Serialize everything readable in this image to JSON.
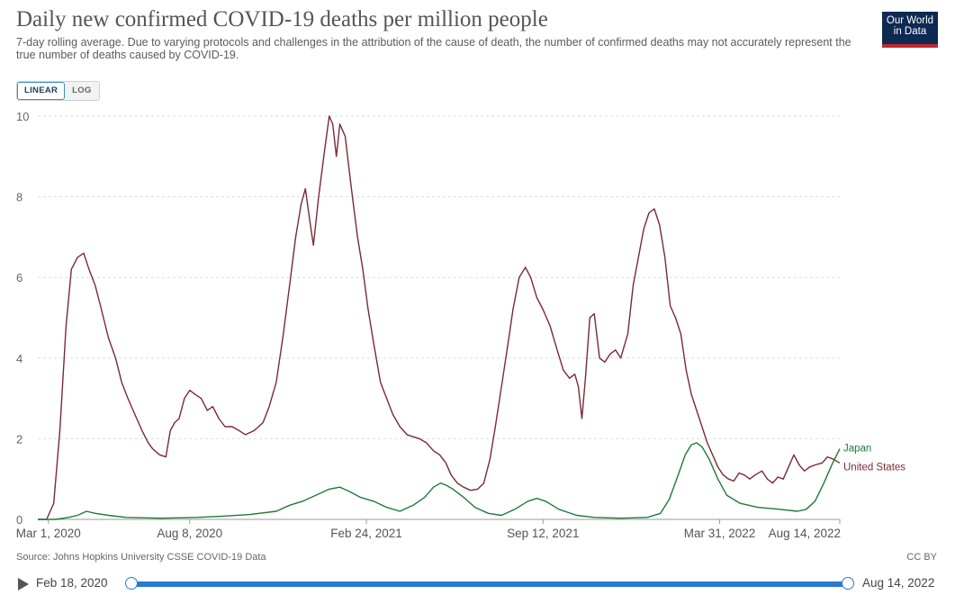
{
  "header": {
    "title": "Daily new confirmed COVID-19 deaths per million people",
    "subtitle": "7-day rolling average. Due to varying protocols and challenges in the attribution of the cause of death, the number of confirmed deaths may not accurately represent the true number of deaths caused by COVID-19.",
    "logo_line1": "Our World",
    "logo_line2": "in Data"
  },
  "controls": {
    "linear_label": "LINEAR",
    "log_label": "LOG",
    "active": "linear"
  },
  "footer": {
    "source": "Source: Johns Hopkins University CSSE COVID-19 Data",
    "license": "CC BY"
  },
  "timeline": {
    "start_label": "Feb 18, 2020",
    "end_label": "Aug 14, 2022"
  },
  "colors": {
    "united_states": "#7a2a35",
    "japan": "#1f7a3a",
    "grid": "#dddddd",
    "axis": "#999999"
  },
  "chart_data": {
    "type": "line",
    "title": "Daily new confirmed COVID-19 deaths per million people",
    "xlabel": "",
    "ylabel": "",
    "ylim": [
      0,
      10
    ],
    "y_ticks": [
      0,
      2,
      4,
      6,
      8,
      10
    ],
    "x_tick_labels": [
      {
        "day": 12,
        "label": "Mar 1, 2020"
      },
      {
        "day": 172,
        "label": "Aug 8, 2020"
      },
      {
        "day": 372,
        "label": "Feb 24, 2021"
      },
      {
        "day": 572,
        "label": "Sep 12, 2021"
      },
      {
        "day": 772,
        "label": "Mar 31, 2022"
      },
      {
        "day": 908,
        "label": "Aug 14, 2022"
      }
    ],
    "x_range": [
      0,
      908
    ],
    "grid": true,
    "series": [
      {
        "name": "United States",
        "label": "United States",
        "points": [
          [
            0,
            0
          ],
          [
            10,
            0
          ],
          [
            18,
            0.4
          ],
          [
            25,
            2.2
          ],
          [
            32,
            4.8
          ],
          [
            38,
            6.2
          ],
          [
            45,
            6.5
          ],
          [
            52,
            6.6
          ],
          [
            58,
            6.2
          ],
          [
            65,
            5.8
          ],
          [
            72,
            5.2
          ],
          [
            80,
            4.5
          ],
          [
            88,
            4.0
          ],
          [
            95,
            3.4
          ],
          [
            102,
            3.0
          ],
          [
            110,
            2.6
          ],
          [
            118,
            2.2
          ],
          [
            125,
            1.9
          ],
          [
            130,
            1.75
          ],
          [
            138,
            1.6
          ],
          [
            145,
            1.55
          ],
          [
            150,
            2.2
          ],
          [
            155,
            2.4
          ],
          [
            160,
            2.5
          ],
          [
            166,
            3.0
          ],
          [
            172,
            3.2
          ],
          [
            178,
            3.1
          ],
          [
            185,
            3.0
          ],
          [
            192,
            2.7
          ],
          [
            198,
            2.8
          ],
          [
            205,
            2.5
          ],
          [
            212,
            2.3
          ],
          [
            220,
            2.3
          ],
          [
            228,
            2.2
          ],
          [
            235,
            2.1
          ],
          [
            245,
            2.2
          ],
          [
            255,
            2.4
          ],
          [
            262,
            2.8
          ],
          [
            270,
            3.4
          ],
          [
            278,
            4.6
          ],
          [
            285,
            5.8
          ],
          [
            292,
            7.0
          ],
          [
            298,
            7.8
          ],
          [
            303,
            8.2
          ],
          [
            308,
            7.4
          ],
          [
            312,
            6.8
          ],
          [
            318,
            8.0
          ],
          [
            325,
            9.2
          ],
          [
            330,
            10.0
          ],
          [
            334,
            9.8
          ],
          [
            338,
            9.0
          ],
          [
            342,
            9.8
          ],
          [
            348,
            9.5
          ],
          [
            355,
            8.2
          ],
          [
            362,
            7.0
          ],
          [
            368,
            6.2
          ],
          [
            374,
            5.2
          ],
          [
            380,
            4.4
          ],
          [
            388,
            3.4
          ],
          [
            395,
            3.0
          ],
          [
            402,
            2.6
          ],
          [
            410,
            2.3
          ],
          [
            418,
            2.1
          ],
          [
            425,
            2.05
          ],
          [
            432,
            2.0
          ],
          [
            440,
            1.9
          ],
          [
            448,
            1.7
          ],
          [
            455,
            1.6
          ],
          [
            462,
            1.4
          ],
          [
            468,
            1.1
          ],
          [
            475,
            0.9
          ],
          [
            482,
            0.8
          ],
          [
            490,
            0.72
          ],
          [
            498,
            0.75
          ],
          [
            505,
            0.9
          ],
          [
            512,
            1.5
          ],
          [
            518,
            2.3
          ],
          [
            525,
            3.3
          ],
          [
            532,
            4.3
          ],
          [
            538,
            5.2
          ],
          [
            545,
            6.0
          ],
          [
            552,
            6.25
          ],
          [
            558,
            6.0
          ],
          [
            565,
            5.5
          ],
          [
            572,
            5.2
          ],
          [
            580,
            4.8
          ],
          [
            588,
            4.2
          ],
          [
            595,
            3.7
          ],
          [
            602,
            3.5
          ],
          [
            608,
            3.6
          ],
          [
            612,
            3.3
          ],
          [
            616,
            2.5
          ],
          [
            620,
            3.5
          ],
          [
            625,
            5.0
          ],
          [
            630,
            5.1
          ],
          [
            636,
            4.0
          ],
          [
            642,
            3.9
          ],
          [
            648,
            4.1
          ],
          [
            654,
            4.2
          ],
          [
            660,
            4.0
          ],
          [
            668,
            4.6
          ],
          [
            674,
            5.8
          ],
          [
            680,
            6.5
          ],
          [
            686,
            7.2
          ],
          [
            692,
            7.6
          ],
          [
            698,
            7.7
          ],
          [
            704,
            7.3
          ],
          [
            710,
            6.5
          ],
          [
            716,
            5.3
          ],
          [
            722,
            5.0
          ],
          [
            728,
            4.6
          ],
          [
            734,
            3.7
          ],
          [
            740,
            3.1
          ],
          [
            746,
            2.7
          ],
          [
            752,
            2.3
          ],
          [
            758,
            1.9
          ],
          [
            764,
            1.6
          ],
          [
            770,
            1.3
          ],
          [
            776,
            1.1
          ],
          [
            782,
            1.0
          ],
          [
            788,
            0.95
          ],
          [
            794,
            1.15
          ],
          [
            800,
            1.1
          ],
          [
            806,
            1.0
          ],
          [
            812,
            1.1
          ],
          [
            820,
            1.2
          ],
          [
            826,
            1.0
          ],
          [
            832,
            0.9
          ],
          [
            838,
            1.05
          ],
          [
            844,
            1.0
          ],
          [
            850,
            1.3
          ],
          [
            856,
            1.6
          ],
          [
            862,
            1.35
          ],
          [
            868,
            1.2
          ],
          [
            874,
            1.3
          ],
          [
            880,
            1.35
          ],
          [
            888,
            1.4
          ],
          [
            894,
            1.55
          ],
          [
            900,
            1.5
          ],
          [
            908,
            1.4
          ]
        ]
      },
      {
        "name": "Japan",
        "label": "Japan",
        "points": [
          [
            0,
            0
          ],
          [
            20,
            0
          ],
          [
            35,
            0.05
          ],
          [
            45,
            0.1
          ],
          [
            55,
            0.2
          ],
          [
            65,
            0.15
          ],
          [
            80,
            0.1
          ],
          [
            100,
            0.05
          ],
          [
            140,
            0.03
          ],
          [
            180,
            0.05
          ],
          [
            210,
            0.08
          ],
          [
            240,
            0.12
          ],
          [
            270,
            0.2
          ],
          [
            285,
            0.35
          ],
          [
            300,
            0.45
          ],
          [
            315,
            0.6
          ],
          [
            330,
            0.75
          ],
          [
            342,
            0.8
          ],
          [
            352,
            0.7
          ],
          [
            365,
            0.55
          ],
          [
            380,
            0.45
          ],
          [
            395,
            0.3
          ],
          [
            410,
            0.2
          ],
          [
            425,
            0.35
          ],
          [
            438,
            0.55
          ],
          [
            448,
            0.8
          ],
          [
            456,
            0.9
          ],
          [
            462,
            0.85
          ],
          [
            470,
            0.75
          ],
          [
            482,
            0.55
          ],
          [
            495,
            0.3
          ],
          [
            510,
            0.15
          ],
          [
            525,
            0.1
          ],
          [
            540,
            0.25
          ],
          [
            555,
            0.45
          ],
          [
            565,
            0.52
          ],
          [
            575,
            0.45
          ],
          [
            590,
            0.25
          ],
          [
            610,
            0.1
          ],
          [
            630,
            0.05
          ],
          [
            660,
            0.03
          ],
          [
            690,
            0.05
          ],
          [
            705,
            0.15
          ],
          [
            715,
            0.5
          ],
          [
            725,
            1.1
          ],
          [
            733,
            1.6
          ],
          [
            740,
            1.85
          ],
          [
            746,
            1.9
          ],
          [
            752,
            1.8
          ],
          [
            760,
            1.5
          ],
          [
            770,
            1.0
          ],
          [
            780,
            0.6
          ],
          [
            795,
            0.4
          ],
          [
            815,
            0.3
          ],
          [
            840,
            0.25
          ],
          [
            860,
            0.2
          ],
          [
            870,
            0.25
          ],
          [
            880,
            0.45
          ],
          [
            890,
            0.9
          ],
          [
            900,
            1.4
          ],
          [
            908,
            1.75
          ]
        ]
      }
    ]
  }
}
